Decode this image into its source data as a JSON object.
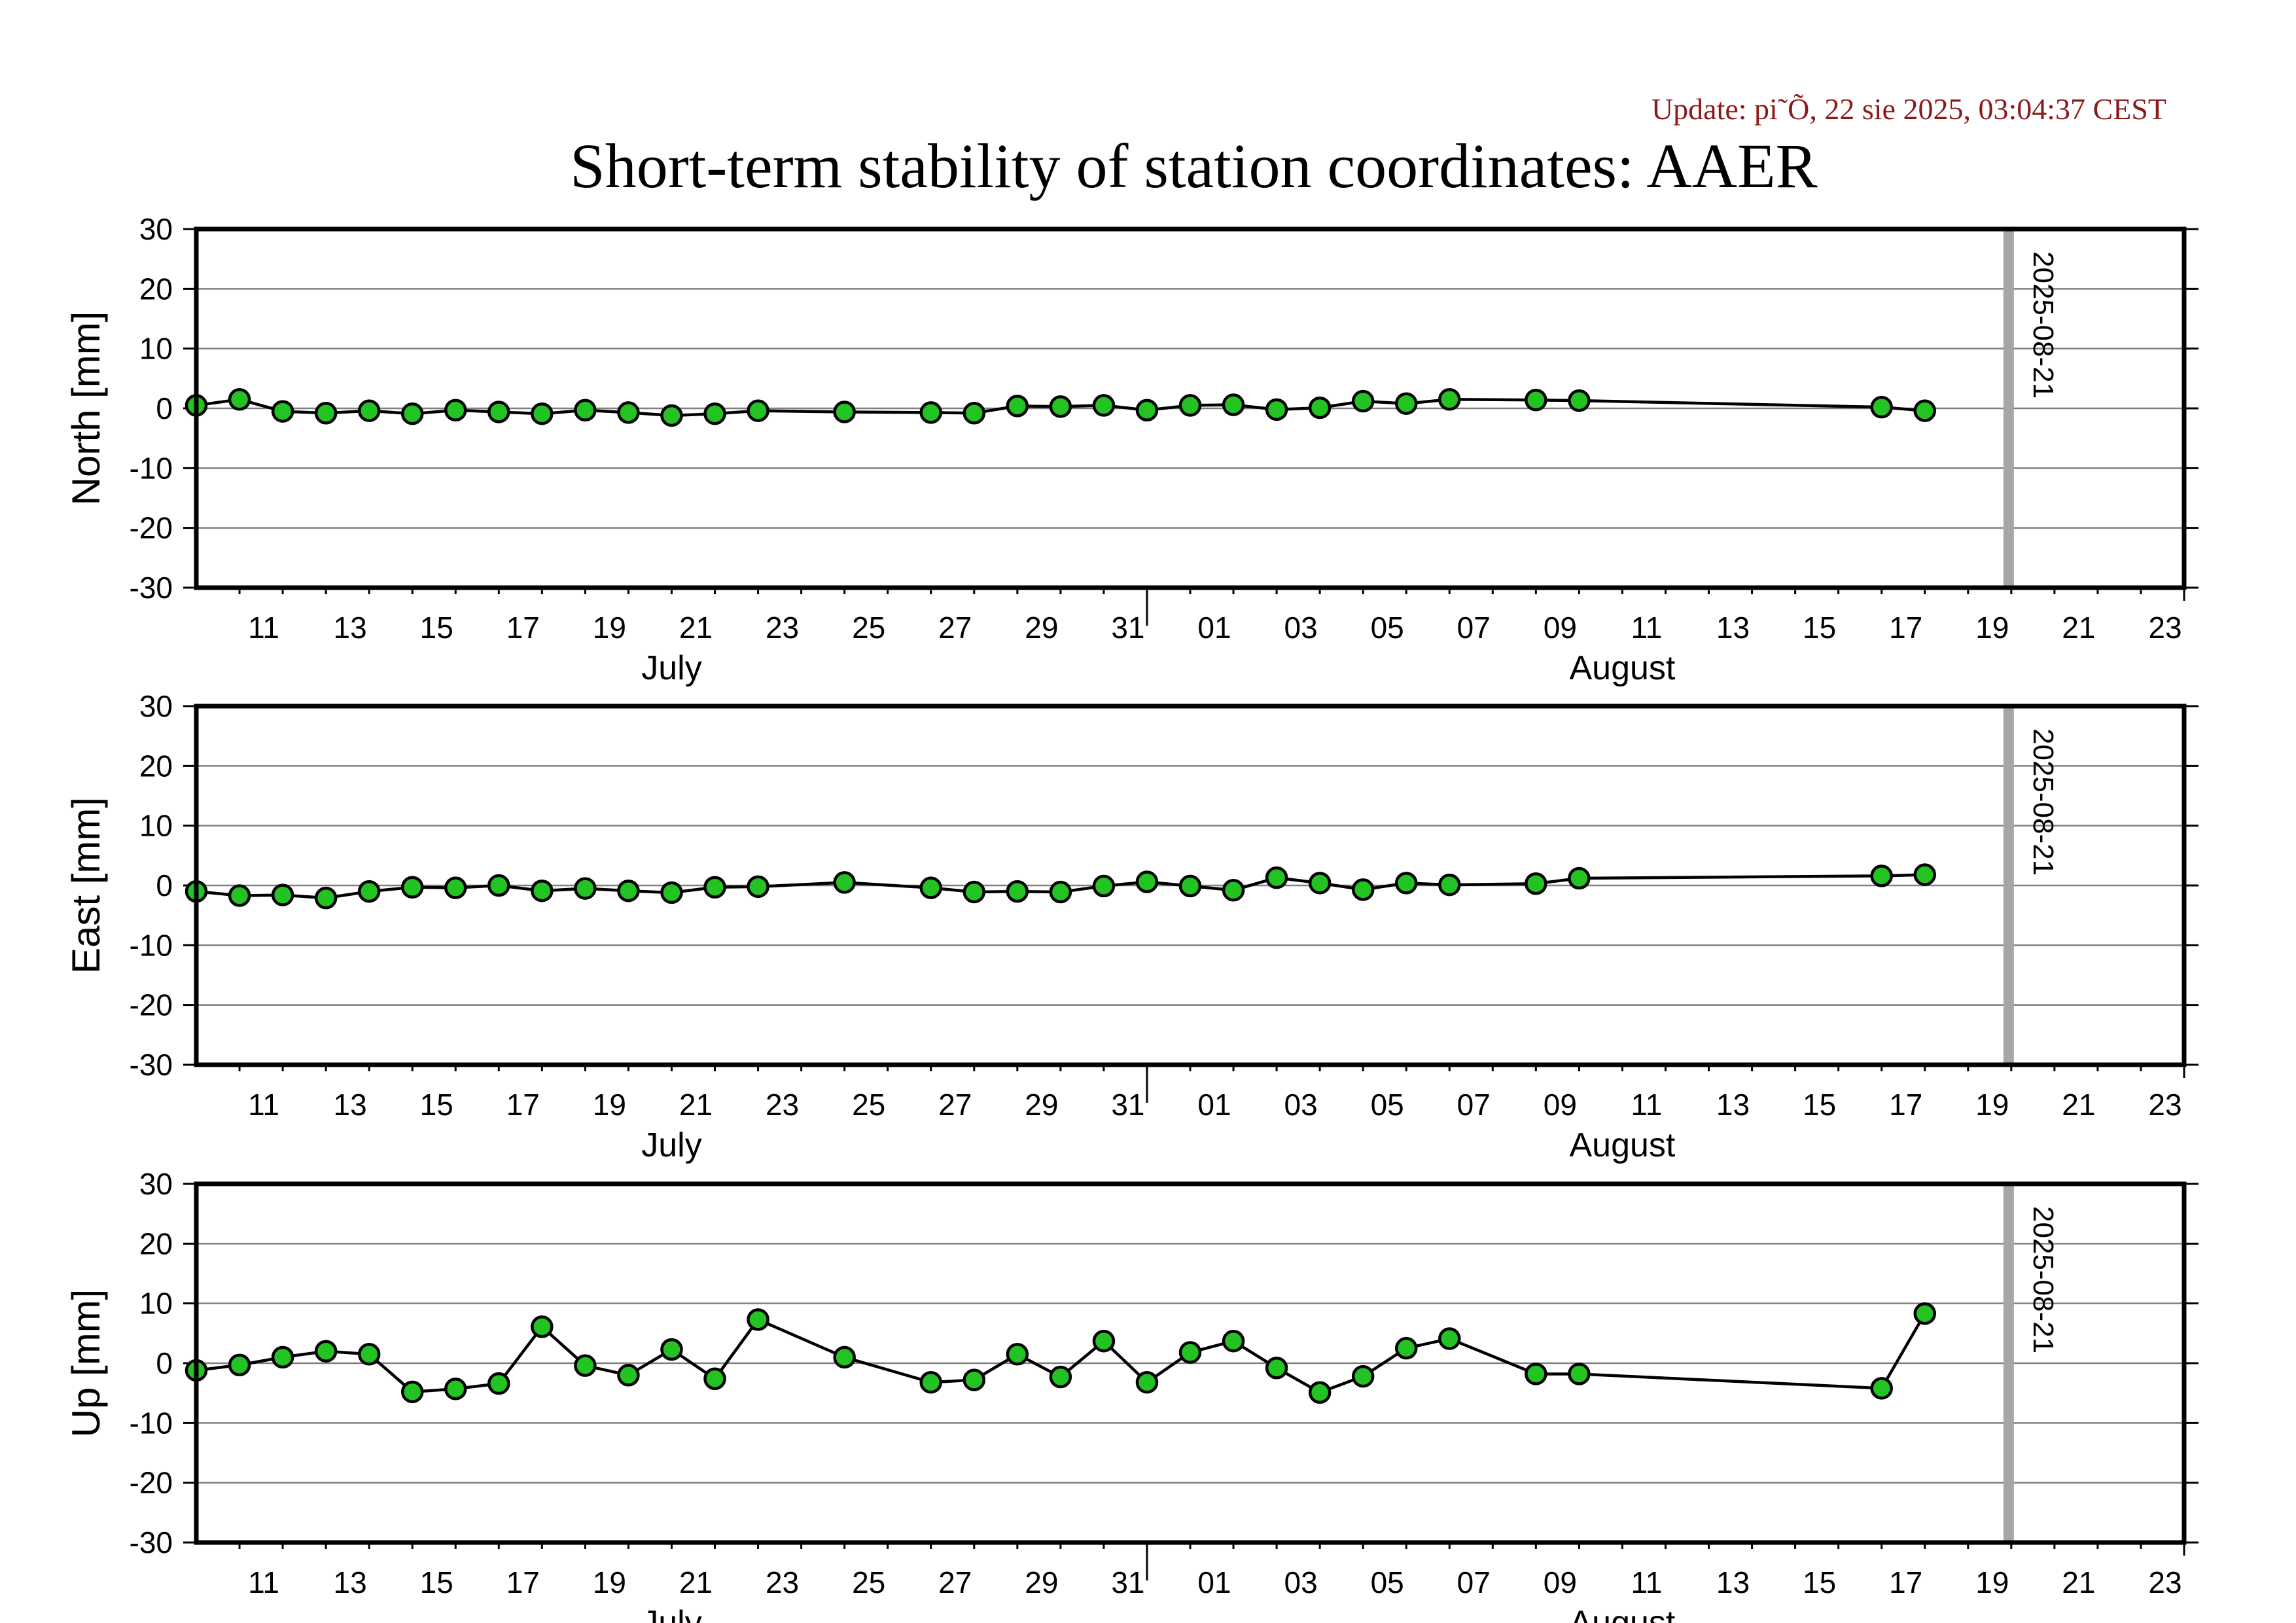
{
  "update_text": "Update: pi˜Õ, 22 sie 2025, 03:04:37 CEST",
  "title": "Short-term stability of station coordinates: AAER",
  "marker_label": "2025-08-21",
  "colors": {
    "point_fill": "#22c322",
    "line": "#000000",
    "marker": "#a6a6a6",
    "grid": "#808080",
    "update_text": "#8b1a1a"
  },
  "chart_data": [
    {
      "type": "line",
      "ylabel": "North [mm]",
      "ylim": [
        -30,
        30
      ],
      "yticks": [
        "30",
        "20",
        "10",
        "0",
        "-10",
        "-20",
        "-30"
      ],
      "x_range": [
        "2025-07-10",
        "2025-08-25"
      ],
      "x_tick_labels": [
        "11",
        "13",
        "15",
        "17",
        "19",
        "21",
        "23",
        "25",
        "27",
        "29",
        "31",
        "01",
        "03",
        "05",
        "07",
        "09",
        "11",
        "13",
        "15",
        "17",
        "19",
        "21",
        "23"
      ],
      "month_labels": [
        "July",
        "August"
      ],
      "grid": "horizontal",
      "marker_date": "2025-08-21",
      "points": [
        {
          "x": "2025-07-10",
          "y": 0.5
        },
        {
          "x": "2025-07-11",
          "y": 1.5
        },
        {
          "x": "2025-07-12",
          "y": -0.5
        },
        {
          "x": "2025-07-13",
          "y": -0.8
        },
        {
          "x": "2025-07-14",
          "y": -0.4
        },
        {
          "x": "2025-07-15",
          "y": -0.9
        },
        {
          "x": "2025-07-16",
          "y": -0.3
        },
        {
          "x": "2025-07-17",
          "y": -0.6
        },
        {
          "x": "2025-07-18",
          "y": -0.9
        },
        {
          "x": "2025-07-19",
          "y": -0.3
        },
        {
          "x": "2025-07-20",
          "y": -0.7
        },
        {
          "x": "2025-07-21",
          "y": -1.2
        },
        {
          "x": "2025-07-22",
          "y": -0.9
        },
        {
          "x": "2025-07-23",
          "y": -0.4
        },
        {
          "x": "2025-07-25",
          "y": -0.6
        },
        {
          "x": "2025-07-27",
          "y": -0.7
        },
        {
          "x": "2025-07-28",
          "y": -0.8
        },
        {
          "x": "2025-07-29",
          "y": 0.4
        },
        {
          "x": "2025-07-30",
          "y": 0.3
        },
        {
          "x": "2025-07-31",
          "y": 0.5
        },
        {
          "x": "2025-08-01",
          "y": -0.3
        },
        {
          "x": "2025-08-02",
          "y": 0.5
        },
        {
          "x": "2025-08-03",
          "y": 0.6
        },
        {
          "x": "2025-08-04",
          "y": -0.2
        },
        {
          "x": "2025-08-05",
          "y": 0.1
        },
        {
          "x": "2025-08-06",
          "y": 1.2
        },
        {
          "x": "2025-08-07",
          "y": 0.8
        },
        {
          "x": "2025-08-08",
          "y": 1.5
        },
        {
          "x": "2025-08-10",
          "y": 1.4
        },
        {
          "x": "2025-08-11",
          "y": 1.3
        },
        {
          "x": "2025-08-18",
          "y": 0.2
        },
        {
          "x": "2025-08-19",
          "y": -0.4
        }
      ]
    },
    {
      "type": "line",
      "ylabel": "East [mm]",
      "ylim": [
        -30,
        30
      ],
      "yticks": [
        "30",
        "20",
        "10",
        "0",
        "-10",
        "-20",
        "-30"
      ],
      "x_range": [
        "2025-07-10",
        "2025-08-25"
      ],
      "x_tick_labels": [
        "11",
        "13",
        "15",
        "17",
        "19",
        "21",
        "23",
        "25",
        "27",
        "29",
        "31",
        "01",
        "03",
        "05",
        "07",
        "09",
        "11",
        "13",
        "15",
        "17",
        "19",
        "21",
        "23"
      ],
      "month_labels": [
        "July",
        "August"
      ],
      "grid": "horizontal",
      "marker_date": "2025-08-21",
      "points": [
        {
          "x": "2025-07-10",
          "y": -1.0
        },
        {
          "x": "2025-07-11",
          "y": -1.7
        },
        {
          "x": "2025-07-12",
          "y": -1.6
        },
        {
          "x": "2025-07-13",
          "y": -2.1
        },
        {
          "x": "2025-07-14",
          "y": -1.0
        },
        {
          "x": "2025-07-15",
          "y": -0.3
        },
        {
          "x": "2025-07-16",
          "y": -0.4
        },
        {
          "x": "2025-07-17",
          "y": 0.0
        },
        {
          "x": "2025-07-18",
          "y": -0.9
        },
        {
          "x": "2025-07-19",
          "y": -0.5
        },
        {
          "x": "2025-07-20",
          "y": -0.9
        },
        {
          "x": "2025-07-21",
          "y": -1.2
        },
        {
          "x": "2025-07-22",
          "y": -0.3
        },
        {
          "x": "2025-07-23",
          "y": -0.2
        },
        {
          "x": "2025-07-25",
          "y": 0.5
        },
        {
          "x": "2025-07-27",
          "y": -0.4
        },
        {
          "x": "2025-07-28",
          "y": -1.1
        },
        {
          "x": "2025-07-29",
          "y": -1.0
        },
        {
          "x": "2025-07-30",
          "y": -1.1
        },
        {
          "x": "2025-07-31",
          "y": -0.1
        },
        {
          "x": "2025-08-01",
          "y": 0.6
        },
        {
          "x": "2025-08-02",
          "y": -0.1
        },
        {
          "x": "2025-08-03",
          "y": -0.8
        },
        {
          "x": "2025-08-04",
          "y": 1.3
        },
        {
          "x": "2025-08-05",
          "y": 0.4
        },
        {
          "x": "2025-08-06",
          "y": -0.7
        },
        {
          "x": "2025-08-07",
          "y": 0.4
        },
        {
          "x": "2025-08-08",
          "y": 0.1
        },
        {
          "x": "2025-08-10",
          "y": 0.3
        },
        {
          "x": "2025-08-11",
          "y": 1.2
        },
        {
          "x": "2025-08-18",
          "y": 1.6
        },
        {
          "x": "2025-08-19",
          "y": 1.8
        }
      ]
    },
    {
      "type": "line",
      "ylabel": "Up [mm]",
      "ylim": [
        -30,
        30
      ],
      "yticks": [
        "30",
        "20",
        "10",
        "0",
        "-10",
        "-20",
        "-30"
      ],
      "x_range": [
        "2025-07-10",
        "2025-08-25"
      ],
      "x_tick_labels": [
        "11",
        "13",
        "15",
        "17",
        "19",
        "21",
        "23",
        "25",
        "27",
        "29",
        "31",
        "01",
        "03",
        "05",
        "07",
        "09",
        "11",
        "13",
        "15",
        "17",
        "19",
        "21",
        "23"
      ],
      "month_labels": [
        "July",
        "August"
      ],
      "grid": "horizontal",
      "marker_date": "2025-08-21",
      "points": [
        {
          "x": "2025-07-10",
          "y": -1.2
        },
        {
          "x": "2025-07-11",
          "y": -0.3
        },
        {
          "x": "2025-07-12",
          "y": 1.0
        },
        {
          "x": "2025-07-13",
          "y": 2.0
        },
        {
          "x": "2025-07-14",
          "y": 1.5
        },
        {
          "x": "2025-07-15",
          "y": -4.8
        },
        {
          "x": "2025-07-16",
          "y": -4.3
        },
        {
          "x": "2025-07-17",
          "y": -3.4
        },
        {
          "x": "2025-07-18",
          "y": 6.1
        },
        {
          "x": "2025-07-19",
          "y": -0.4
        },
        {
          "x": "2025-07-20",
          "y": -2.0
        },
        {
          "x": "2025-07-21",
          "y": 2.3
        },
        {
          "x": "2025-07-22",
          "y": -2.6
        },
        {
          "x": "2025-07-23",
          "y": 7.3
        },
        {
          "x": "2025-07-25",
          "y": 1.0
        },
        {
          "x": "2025-07-27",
          "y": -3.2
        },
        {
          "x": "2025-07-28",
          "y": -2.8
        },
        {
          "x": "2025-07-29",
          "y": 1.5
        },
        {
          "x": "2025-07-30",
          "y": -2.3
        },
        {
          "x": "2025-07-31",
          "y": 3.7
        },
        {
          "x": "2025-08-01",
          "y": -3.2
        },
        {
          "x": "2025-08-02",
          "y": 1.8
        },
        {
          "x": "2025-08-03",
          "y": 3.7
        },
        {
          "x": "2025-08-04",
          "y": -0.8
        },
        {
          "x": "2025-08-05",
          "y": -4.9
        },
        {
          "x": "2025-08-06",
          "y": -2.2
        },
        {
          "x": "2025-08-07",
          "y": 2.5
        },
        {
          "x": "2025-08-08",
          "y": 4.1
        },
        {
          "x": "2025-08-10",
          "y": -1.8
        },
        {
          "x": "2025-08-11",
          "y": -1.8
        },
        {
          "x": "2025-08-18",
          "y": -4.2
        },
        {
          "x": "2025-08-19",
          "y": 8.3
        }
      ]
    }
  ]
}
